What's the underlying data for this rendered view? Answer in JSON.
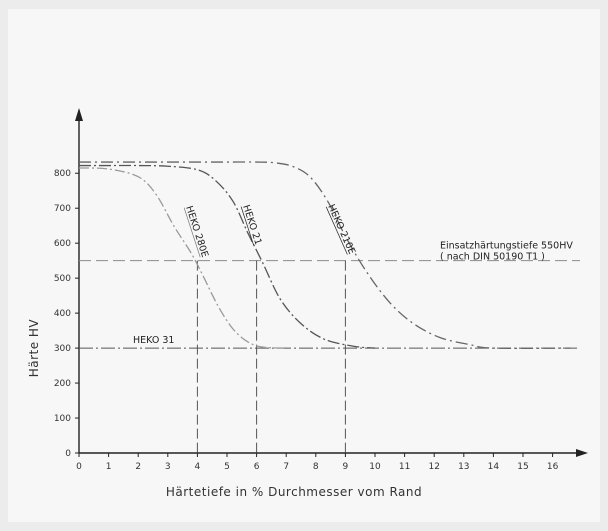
{
  "chart_data": {
    "type": "line",
    "title": "",
    "xlabel": "Härtetiefe in % Durchmesser vom Rand",
    "ylabel": "Härte  HV",
    "xlim": [
      0,
      16.6
    ],
    "ylim": [
      0,
      870
    ],
    "x_ticks": [
      0,
      1,
      2,
      3,
      4,
      5,
      6,
      7,
      8,
      9,
      10,
      11,
      12,
      13,
      14,
      15,
      16
    ],
    "y_ticks": [
      0,
      100,
      200,
      300,
      400,
      500,
      600,
      700,
      800
    ],
    "grid": false,
    "series": [
      {
        "name": "HEKO 280E",
        "color": "#9a9a9a",
        "x": [
          0,
          1,
          2,
          2.6,
          3.2,
          3.8,
          4.2,
          4.7,
          5.2,
          5.7,
          6.2,
          7
        ],
        "y": [
          815,
          812,
          790,
          740,
          650,
          570,
          505,
          420,
          355,
          318,
          303,
          300
        ]
      },
      {
        "name": "HEKO 21",
        "color": "#555555",
        "x": [
          0,
          1,
          2,
          3,
          4,
          4.6,
          5.2,
          5.7,
          6.2,
          6.8,
          7.5,
          8.3,
          9.3,
          10
        ],
        "y": [
          822,
          822,
          822,
          820,
          810,
          780,
          720,
          630,
          545,
          440,
          370,
          325,
          305,
          300
        ]
      },
      {
        "name": "HEKO 210E",
        "color": "#666666",
        "x": [
          0,
          1,
          2,
          3,
          4,
          5,
          6,
          6.6,
          7.2,
          7.8,
          8.4,
          9,
          9.7,
          10.5,
          11.3,
          12.2,
          13.2,
          14,
          16.6
        ],
        "y": [
          832,
          832,
          832,
          832,
          832,
          832,
          832,
          830,
          820,
          790,
          720,
          620,
          520,
          430,
          370,
          330,
          310,
          300,
          300
        ]
      }
    ],
    "reference_lines": [
      {
        "y": 550,
        "label": "Einsatzhärtungstiefe 550HV",
        "sublabel": "( nach DIN 50190 T1 )"
      },
      {
        "y": 300,
        "label": "HEKO 31"
      }
    ],
    "drop_lines": [
      {
        "x": 4,
        "y": 550
      },
      {
        "x": 6,
        "y": 550
      },
      {
        "x": 9,
        "y": 550
      }
    ]
  }
}
